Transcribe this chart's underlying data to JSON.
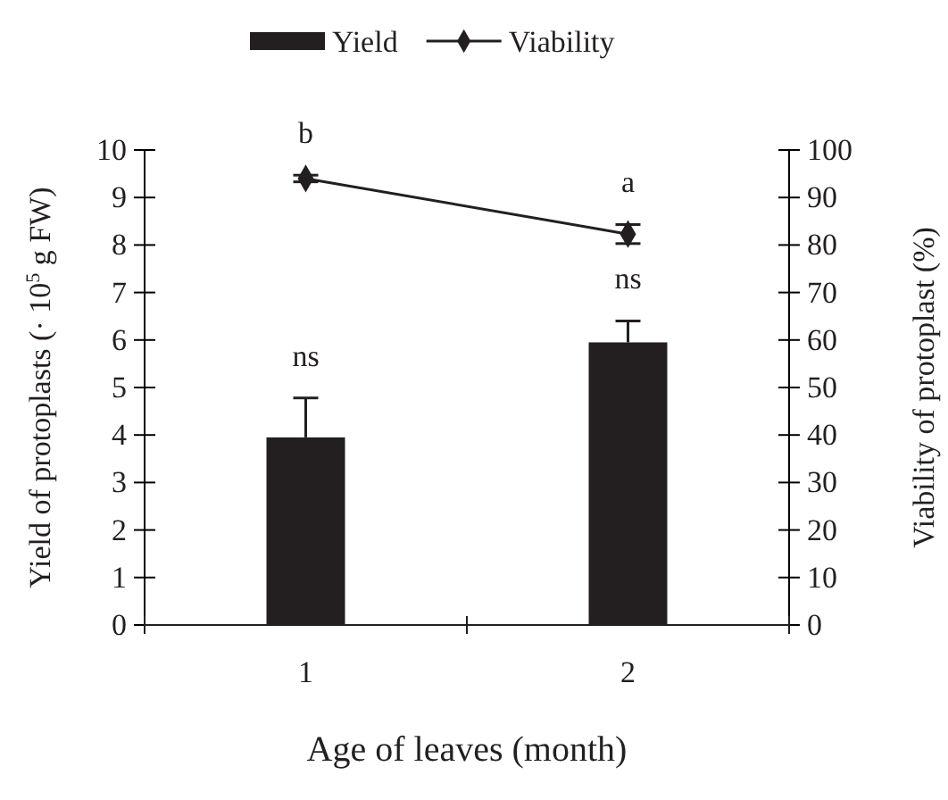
{
  "chart_data": {
    "type": "bar",
    "categories": [
      "1",
      "2"
    ],
    "xlabel": "Age of leaves (month)",
    "ylabel": "Yield of protoplasts (· 10$^{5}$ g FW)",
    "y2label": "Viability of protoplast (%)",
    "ylim": [
      0,
      10
    ],
    "yticks": [
      0,
      1,
      2,
      3,
      4,
      5,
      6,
      7,
      8,
      9,
      10
    ],
    "y2lim": [
      0,
      100
    ],
    "y2ticks": [
      0,
      10,
      20,
      30,
      40,
      50,
      60,
      70,
      80,
      90,
      100
    ],
    "series": [
      {
        "name": "Yield",
        "color": "#231f20",
        "values": [
          3.95,
          5.95
        ],
        "errors": [
          [
            3.95,
            4.78
          ],
          [
            5.95,
            6.4
          ]
        ]
      },
      {
        "name": "Viability",
        "type": "line",
        "axis": "y2",
        "color": "#231f20",
        "marker": "diamond",
        "values": [
          94,
          82.3
        ],
        "errors": [
          [
            93.3,
            94.7
          ],
          [
            80.3,
            84.3
          ]
        ]
      }
    ],
    "annotations": [
      {
        "text": "ns",
        "x": "1",
        "y": 3.95
      },
      {
        "text": "ns",
        "x": "2",
        "y": 5.95
      },
      {
        "text": "b",
        "x": "1",
        "y": 9.4
      },
      {
        "text": "a",
        "x": "2",
        "y": 8.23
      }
    ],
    "legend": "top",
    "grid": false
  }
}
